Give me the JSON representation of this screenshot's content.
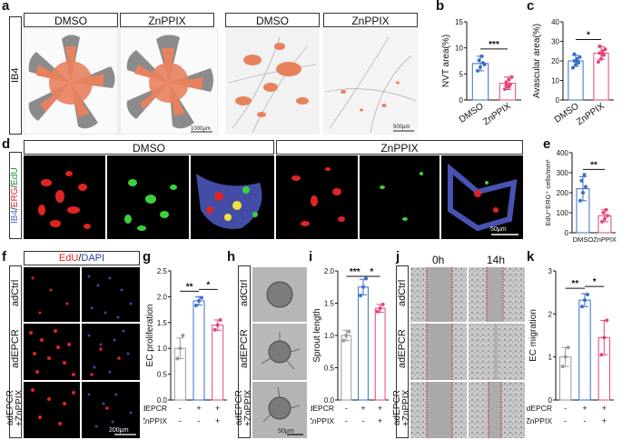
{
  "panel_letters": {
    "a": "a",
    "b": "b",
    "c": "c",
    "d": "d",
    "e": "e",
    "f": "f",
    "g": "g",
    "h": "h",
    "i": "i",
    "j": "j",
    "k": "k"
  },
  "panel_a": {
    "row_label": "IB4",
    "headers": [
      "DMSO",
      "ZnPPIX",
      "DMSO",
      "ZnPPIX"
    ],
    "scale1": "1000μm",
    "scale2": "500μm"
  },
  "panel_d": {
    "row_label_parts": [
      "IB4",
      "/",
      "ERG",
      "/",
      "EdU"
    ],
    "headers": [
      "DMSO",
      "ZnPPIX"
    ],
    "scale": "50μm"
  },
  "panel_f": {
    "header_parts": [
      "EdU",
      "/",
      "DAPI"
    ],
    "rows": [
      "adCtrl",
      "adEPCR",
      "adEPCR\n+ZnPPIX"
    ],
    "scale": "200μm"
  },
  "panel_h": {
    "rows": [
      "adCtrl",
      "adEPCR",
      "adEPCR\n+ZnPPIX"
    ],
    "scale": "50μm"
  },
  "panel_j": {
    "rows": [
      "adCtrl",
      "adEPCR",
      "adEPCR\n+ZnPPIX"
    ],
    "headers": [
      "0h",
      "14h"
    ]
  },
  "colors": {
    "blue": "#3a6fc9",
    "pink": "#e6467a",
    "gray": "#9a9a9a",
    "retina_orange": "#e8815e"
  },
  "chart_data": [
    {
      "id": "b",
      "type": "bar",
      "categories": [
        "DMSO",
        "ZnPPIX"
      ],
      "values": [
        7.0,
        3.2
      ],
      "errors": [
        1.4,
        1.2
      ],
      "points": [
        [
          5.6,
          6.3,
          7.1,
          7.6,
          8.4,
          6.8
        ],
        [
          2.1,
          2.6,
          3.0,
          3.4,
          3.9,
          4.4,
          2.8,
          2.5
        ]
      ],
      "ylabel": "NVT area(%)",
      "ylim": [
        0,
        15
      ],
      "yticks": [
        0,
        5,
        10,
        15
      ],
      "significance": "***"
    },
    {
      "id": "c",
      "type": "bar",
      "categories": [
        "DMSO",
        "ZnPPIX"
      ],
      "values": [
        20,
        24
      ],
      "errors": [
        2.8,
        3.2
      ],
      "points": [
        [
          16.5,
          18,
          19,
          20,
          21,
          22,
          23.5,
          20
        ],
        [
          19.5,
          21,
          23,
          24,
          25,
          26,
          27.5,
          23
        ]
      ],
      "ylabel": "Avascular area(%)",
      "ylim": [
        0,
        40
      ],
      "yticks": [
        0,
        10,
        20,
        30,
        40
      ],
      "significance": "*"
    },
    {
      "id": "e",
      "type": "bar",
      "categories": [
        "DMSO",
        "ZnPPIX"
      ],
      "values": [
        220,
        85
      ],
      "errors": [
        60,
        30
      ],
      "points": [
        [
          160,
          200,
          230,
          260,
          290
        ],
        [
          55,
          70,
          85,
          100,
          115
        ]
      ],
      "ylabel": "EdU⁺ERG⁺ cells/mm²",
      "ylim": [
        0,
        400
      ],
      "yticks": [
        0,
        100,
        200,
        300,
        400
      ],
      "significance": "**"
    },
    {
      "id": "g",
      "type": "bar",
      "categories": [
        "adCtrl",
        "adEPCR",
        "adEPCR+ZnPPIX"
      ],
      "values": [
        1.0,
        1.92,
        1.45
      ],
      "errors": [
        0.2,
        0.08,
        0.1
      ],
      "points": [
        [
          0.8,
          1.0,
          1.25
        ],
        [
          1.83,
          1.92,
          1.98
        ],
        [
          1.36,
          1.45,
          1.55
        ]
      ],
      "ylabel": "EC proliferation",
      "ylim": [
        0,
        2.5
      ],
      "yticks": [
        0.0,
        0.5,
        1.0,
        1.5,
        2.0,
        2.5
      ],
      "xrows": [
        [
          "adEPCR",
          [
            "-",
            "+",
            "+"
          ]
        ],
        [
          "ZnPPIX",
          [
            "-",
            "-",
            "+"
          ]
        ]
      ],
      "significance": [
        [
          "**",
          0,
          1
        ],
        [
          "*",
          1,
          2
        ]
      ]
    },
    {
      "id": "i",
      "type": "bar",
      "categories": [
        "adCtrl",
        "adEPCR",
        "adEPCR+ZnPPIX"
      ],
      "values": [
        1.0,
        1.75,
        1.42
      ],
      "errors": [
        0.08,
        0.12,
        0.06
      ],
      "points": [
        [
          0.92,
          1.0,
          1.06
        ],
        [
          1.62,
          1.75,
          1.88
        ],
        [
          1.37,
          1.42,
          1.48
        ]
      ],
      "ylabel": "Sprout length",
      "ylim": [
        0,
        2.0
      ],
      "yticks": [
        0.0,
        0.5,
        1.0,
        1.5,
        2.0
      ],
      "xrows": [
        [
          "adEPCR",
          [
            "-",
            "+",
            "+"
          ]
        ],
        [
          "ZnPPIX",
          [
            "-",
            "-",
            "+"
          ]
        ]
      ],
      "significance": [
        [
          "***",
          0,
          1
        ],
        [
          "*",
          1,
          2
        ]
      ]
    },
    {
      "id": "k",
      "type": "bar",
      "categories": [
        "adCtrl",
        "adEPCR",
        "adEPCR+ZnPPIX"
      ],
      "values": [
        1.0,
        2.32,
        1.45
      ],
      "errors": [
        0.22,
        0.15,
        0.4
      ],
      "points": [
        [
          0.78,
          1.0,
          1.22
        ],
        [
          2.17,
          2.32,
          2.45
        ],
        [
          1.05,
          1.45,
          1.85
        ]
      ],
      "ylabel": "EC migration",
      "ylim": [
        0,
        3
      ],
      "yticks": [
        0,
        1,
        2,
        3
      ],
      "xrows": [
        [
          "adEPCR",
          [
            "-",
            "+",
            "+"
          ]
        ],
        [
          "ZnPPIX",
          [
            "-",
            "-",
            "+"
          ]
        ]
      ],
      "significance": [
        [
          "**",
          0,
          1
        ],
        [
          "*",
          1,
          2
        ]
      ]
    }
  ]
}
